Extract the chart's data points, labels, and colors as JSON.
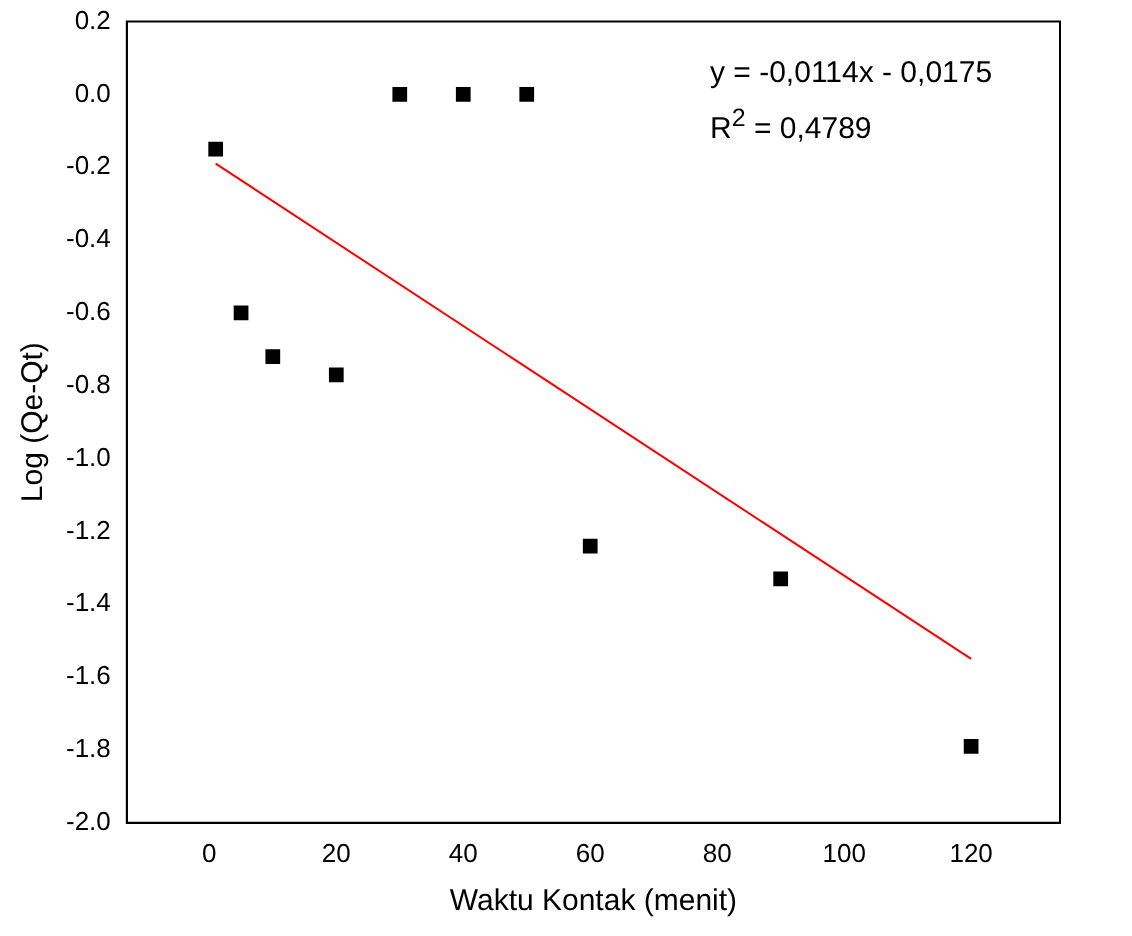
{
  "chart_data": {
    "type": "scatter",
    "xlabel": "Waktu Kontak (menit)",
    "ylabel": "Log (Qe-Qt)",
    "xlim": [
      -13,
      134
    ],
    "xticks": [
      0,
      20,
      40,
      60,
      80,
      100,
      120
    ],
    "ylim": [
      -2.0,
      0.2
    ],
    "yticks": [
      {
        "value": -2.0,
        "label": "-2.0"
      },
      {
        "value": -1.8,
        "label": "-1.8"
      },
      {
        "value": -1.6,
        "label": "-1.6"
      },
      {
        "value": -1.4,
        "label": "-1.4"
      },
      {
        "value": -1.2,
        "label": "-1.2"
      },
      {
        "value": -1.0,
        "label": "-1.0"
      },
      {
        "value": -0.8,
        "label": "-0.8"
      },
      {
        "value": -0.6,
        "label": "-0.6"
      },
      {
        "value": -0.4,
        "label": "-0.4"
      },
      {
        "value": -0.2,
        "label": "-0.2"
      },
      {
        "value": 0.0,
        "label": "0.0"
      },
      {
        "value": 0.2,
        "label": "0.2"
      }
    ],
    "series": [
      {
        "type": "scatter",
        "color": "#000000",
        "marker": "square",
        "x": [
          1,
          5,
          10,
          20,
          30,
          40,
          50,
          60,
          90,
          120
        ],
        "values": [
          -0.15,
          -0.6,
          -0.72,
          -0.77,
          0,
          0,
          0,
          -1.24,
          -1.33,
          -1.79
        ]
      },
      {
        "type": "line",
        "color": "#ff0000",
        "marker": "none",
        "x": [
          1,
          120
        ],
        "values": [
          -0.19,
          -1.55
        ]
      }
    ],
    "annotations": [
      "y = -0,0114x - 0,0175",
      "R$^{2}$ = 0,4789"
    ],
    "grid": false,
    "legend": false
  }
}
